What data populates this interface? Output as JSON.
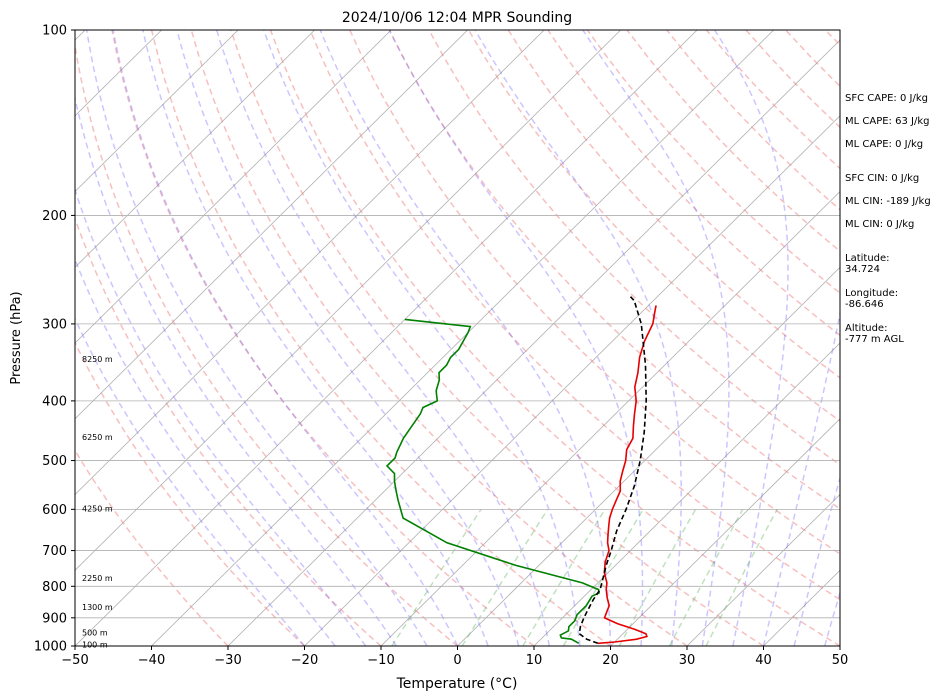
{
  "chart_data": {
    "type": "line",
    "chart_kind": "Skew-T log-P sounding diagram",
    "title": "2024/10/06 12:04 MPR Sounding",
    "xlabel": "Temperature (°C)",
    "ylabel": "Pressure (hPa)",
    "xlim": [
      -50,
      50
    ],
    "ylim": [
      1000,
      100
    ],
    "y_scale": "log",
    "x_ticks": [
      -50,
      -40,
      -30,
      -20,
      -10,
      0,
      10,
      20,
      30,
      40,
      50
    ],
    "y_ticks": [
      1000,
      900,
      800,
      700,
      600,
      500,
      400,
      300,
      200,
      100
    ],
    "grid": true,
    "height_labels": [
      {
        "text": "100 m",
        "p": 995
      },
      {
        "text": "500 m",
        "p": 950
      },
      {
        "text": "1300 m",
        "p": 865
      },
      {
        "text": "2250 m",
        "p": 775
      },
      {
        "text": "4250 m",
        "p": 598
      },
      {
        "text": "6250 m",
        "p": 458
      },
      {
        "text": "8250 m",
        "p": 342
      }
    ],
    "series": [
      {
        "key": "temperature",
        "color": "#e60000",
        "points": [
          [
            18,
            990
          ],
          [
            20,
            985
          ],
          [
            22.5,
            975
          ],
          [
            23.5,
            965
          ],
          [
            23,
            955
          ],
          [
            21,
            940
          ],
          [
            18,
            920
          ],
          [
            15.5,
            900
          ],
          [
            15,
            880
          ],
          [
            14.5,
            860
          ],
          [
            13.2,
            835
          ],
          [
            12,
            810
          ],
          [
            11.2,
            790
          ],
          [
            9.5,
            760
          ],
          [
            8.2,
            730
          ],
          [
            7.2,
            700
          ],
          [
            6,
            680
          ],
          [
            5,
            660
          ],
          [
            4,
            640
          ],
          [
            3,
            620
          ],
          [
            2.2,
            600
          ],
          [
            1.5,
            580
          ],
          [
            0.8,
            560
          ],
          [
            -0.5,
            540
          ],
          [
            -1.5,
            520
          ],
          [
            -2.5,
            500
          ],
          [
            -3.8,
            480
          ],
          [
            -4.5,
            460
          ],
          [
            -6,
            440
          ],
          [
            -7.5,
            420
          ],
          [
            -9,
            400
          ],
          [
            -11,
            380
          ],
          [
            -12.5,
            360
          ],
          [
            -14.3,
            340
          ],
          [
            -15.8,
            320
          ],
          [
            -17,
            300
          ],
          [
            -18.5,
            285
          ],
          [
            -19,
            280
          ]
        ]
      },
      {
        "key": "dewpoint",
        "color": "#008000",
        "points": [
          [
            15.5,
            990
          ],
          [
            14,
            975
          ],
          [
            12.5,
            970
          ],
          [
            12,
            960
          ],
          [
            12.5,
            945
          ],
          [
            12,
            930
          ],
          [
            12,
            910
          ],
          [
            11.5,
            890
          ],
          [
            11.5,
            860
          ],
          [
            11,
            830
          ],
          [
            11.5,
            820
          ],
          [
            11,
            810
          ],
          [
            8,
            790
          ],
          [
            -3,
            740
          ],
          [
            -15,
            680
          ],
          [
            -24,
            620
          ],
          [
            -27,
            580
          ],
          [
            -28.5,
            560
          ],
          [
            -30,
            540
          ],
          [
            -31,
            525
          ],
          [
            -33,
            510
          ],
          [
            -33,
            495
          ],
          [
            -33.5,
            485
          ],
          [
            -34.5,
            460
          ],
          [
            -35,
            440
          ],
          [
            -35.5,
            420
          ],
          [
            -36,
            410
          ],
          [
            -35,
            400
          ],
          [
            -36,
            390
          ],
          [
            -36.5,
            385
          ],
          [
            -37.5,
            370
          ],
          [
            -38.5,
            360
          ],
          [
            -38.5,
            350
          ],
          [
            -39,
            340
          ],
          [
            -39,
            330
          ],
          [
            -39.5,
            320
          ],
          [
            -40,
            310
          ],
          [
            -40.5,
            303
          ],
          [
            -50,
            295
          ]
        ]
      },
      {
        "key": "parcel",
        "color": "#000000",
        "dashed": true,
        "points": [
          [
            18,
            990
          ],
          [
            16,
            975
          ],
          [
            14.3,
            955
          ],
          [
            13.5,
            930
          ],
          [
            12.8,
            900
          ],
          [
            12.4,
            880
          ],
          [
            11.6,
            840
          ],
          [
            11.2,
            810
          ],
          [
            10.2,
            780
          ],
          [
            8.8,
            740
          ],
          [
            7.5,
            700
          ],
          [
            5.6,
            650
          ],
          [
            4,
            600
          ],
          [
            2,
            550
          ],
          [
            -0.6,
            500
          ],
          [
            -3.8,
            450
          ],
          [
            -7.7,
            400
          ],
          [
            -12.5,
            350
          ],
          [
            -18.5,
            300
          ],
          [
            -22.5,
            275
          ],
          [
            -23.5,
            271
          ]
        ]
      }
    ],
    "background_lines": {
      "isotherms": "gray solid",
      "dry_adiabats": "red dashed",
      "moist_adiabats": "blue dashed",
      "mixing_ratio_lines": "green dashed"
    }
  },
  "side_info": {
    "sfc_cape": "SFC CAPE: 0 J/kg",
    "ml_cape_1": "ML CAPE: 63 J/kg",
    "ml_cape_2": "ML CAPE: 0 J/kg",
    "sfc_cin": "SFC CIN: 0 J/kg",
    "ml_cin_1": "ML CIN: -189 J/kg",
    "ml_cin_2": "ML CIN: 0 J/kg",
    "latitude": "Latitude:\n34.724",
    "longitude": "Longitude:\n-86.646",
    "altitude": "Altitude:\n-777 m AGL"
  }
}
